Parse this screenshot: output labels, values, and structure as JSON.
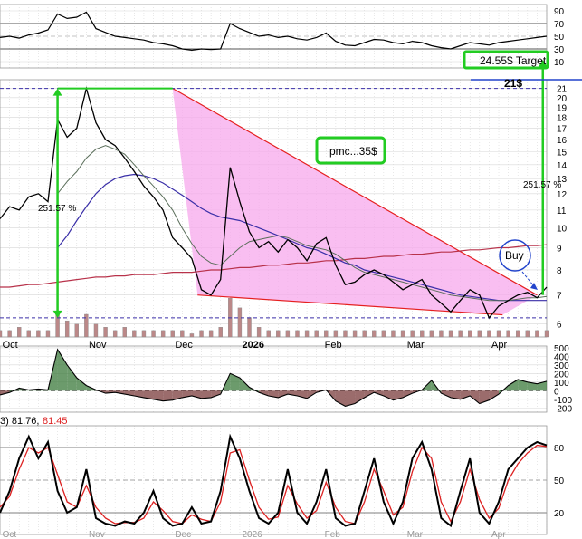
{
  "colors": {
    "background": "#ffffff",
    "grid": "#d8d8d8",
    "price": "#000000",
    "ma_short": "#5a6e5a",
    "ma_long": "#3a2fa8",
    "ma_red": "#b8324a",
    "wedge_fill": "#f7a8ec",
    "wedge_line": "#e52020",
    "annotation_green": "#22cc22",
    "annotation_blue": "#2244cc",
    "volume": "#bb8888",
    "stoch_k": "#000000",
    "stoch_d": "#dd2222",
    "hist_pos": "#3b7a3b",
    "hist_neg": "#7a3b3b"
  },
  "rsi_panel": {
    "tick_labels": [
      "90",
      "70",
      "50",
      "30",
      "10"
    ],
    "tick_values": [
      90,
      70,
      50,
      30,
      10
    ],
    "range": [
      0,
      100
    ]
  },
  "price_panel": {
    "tick_labels": [
      "21",
      "20",
      "19",
      "18",
      "17",
      "16",
      "15",
      "14",
      "13",
      "12",
      "11",
      "10",
      "9",
      "8",
      "7",
      "6"
    ],
    "tick_values": [
      21,
      20,
      19,
      18,
      17,
      16,
      15,
      14,
      13,
      12,
      11,
      10,
      9,
      8,
      7,
      6
    ],
    "x_labels": [
      "Oct",
      "Nov",
      "Dec",
      "2026",
      "Feb",
      "Mar",
      "Apr"
    ],
    "x_label_positions": [
      0.5,
      5.0,
      9.5,
      13.0,
      17.3,
      21.6,
      26.0
    ]
  },
  "macd_panel": {
    "tick_labels": [
      "500",
      "400",
      "300",
      "200",
      "100",
      "0",
      "-100",
      "-200"
    ],
    "tick_values": [
      500,
      400,
      300,
      200,
      100,
      0,
      -100,
      -200
    ]
  },
  "stoch_panel": {
    "header_prefix": "3) 81.76,",
    "header_value": "81.45",
    "tick_labels": [
      "80",
      "50",
      "20"
    ],
    "tick_values": [
      80,
      50,
      20
    ],
    "x_labels": [
      "Oct",
      "Nov",
      "Dec",
      "2026",
      "Feb",
      "Mar",
      "Apr"
    ]
  },
  "annotations": {
    "target_label": "24.55$ Target",
    "target_level_label": "21$",
    "pmc_label": "pmc...35$",
    "pct_left": "251.57 %",
    "pct_right": "251.57 %",
    "buy_label": "Buy"
  },
  "chart_data": [
    {
      "type": "line",
      "panel": "rsi",
      "x": [
        0,
        0.5,
        1,
        1.5,
        2,
        2.5,
        3,
        3.5,
        4,
        4.5,
        5,
        5.5,
        6,
        6.5,
        7,
        7.5,
        8,
        8.5,
        9,
        9.5,
        10,
        10.5,
        11,
        11.5,
        12,
        12.5,
        13,
        13.5,
        14,
        14.5,
        15,
        15.5,
        16,
        16.5,
        17,
        17.5,
        18,
        18.5,
        19,
        19.5,
        20,
        20.5,
        21,
        21.5,
        22,
        22.5,
        23,
        23.5,
        24,
        24.5,
        25,
        25.5,
        26,
        26.5,
        27,
        27.5,
        28,
        28.5
      ],
      "series": [
        {
          "values": [
            48,
            50,
            47,
            52,
            55,
            60,
            85,
            78,
            80,
            88,
            62,
            56,
            50,
            48,
            46,
            44,
            40,
            38,
            35,
            30,
            28,
            30,
            29,
            30,
            70,
            62,
            56,
            50,
            52,
            48,
            50,
            46,
            44,
            48,
            55,
            42,
            36,
            35,
            40,
            45,
            44,
            40,
            38,
            42,
            40,
            35,
            32,
            30,
            35,
            40,
            38,
            36,
            40,
            42,
            44,
            46,
            48,
            50
          ]
        }
      ],
      "ylim": [
        0,
        100
      ]
    },
    {
      "type": "line",
      "panel": "price",
      "x": [
        0,
        0.5,
        1,
        1.5,
        2,
        2.5,
        3,
        3.5,
        4,
        4.5,
        5,
        5.5,
        6,
        6.5,
        7,
        7.5,
        8,
        8.5,
        9,
        9.5,
        10,
        10.5,
        11,
        11.5,
        12,
        12.5,
        13,
        13.5,
        14,
        14.5,
        15,
        15.5,
        16,
        16.5,
        17,
        17.5,
        18,
        18.5,
        19,
        19.5,
        20,
        20.5,
        21,
        21.5,
        22,
        22.5,
        23,
        23.5,
        24,
        24.5,
        25,
        25.5,
        26,
        26.5,
        27,
        27.5,
        28,
        28.5
      ],
      "series": [
        {
          "name": "Price",
          "values": [
            10.5,
            11.2,
            11.0,
            11.8,
            12.0,
            11.5,
            17.8,
            16.2,
            17.0,
            21.0,
            17.5,
            16.0,
            15.5,
            14.5,
            13.5,
            12.5,
            11.8,
            11.0,
            9.5,
            9.0,
            8.5,
            7.2,
            7.0,
            7.6,
            13.8,
            11.5,
            9.8,
            9.0,
            9.3,
            8.8,
            9.4,
            9.0,
            8.4,
            9.2,
            9.5,
            8.2,
            7.4,
            7.5,
            7.8,
            8.0,
            7.8,
            7.5,
            7.2,
            7.4,
            7.6,
            7.0,
            6.7,
            6.4,
            6.8,
            7.2,
            7.0,
            6.2,
            6.6,
            6.8,
            7.0,
            7.1,
            6.9,
            7.3
          ]
        },
        {
          "name": "MA short",
          "values": [
            null,
            null,
            null,
            null,
            null,
            null,
            12.0,
            12.8,
            13.5,
            14.5,
            15.2,
            15.5,
            15.2,
            14.8,
            14.0,
            13.2,
            12.5,
            11.8,
            11.0,
            10.0,
            9.2,
            8.6,
            8.3,
            8.2,
            8.6,
            9.0,
            9.3,
            9.4,
            9.5,
            9.6,
            9.5,
            9.3,
            9.1,
            9.0,
            8.9,
            8.7,
            8.4,
            8.1,
            7.9,
            7.8,
            7.7,
            7.6,
            7.5,
            7.4,
            7.3,
            7.2,
            7.1,
            7.0,
            6.95,
            6.9,
            6.85,
            6.8,
            6.8,
            6.8,
            6.85,
            6.9,
            6.9,
            6.95
          ]
        },
        {
          "name": "MA long",
          "values": [
            null,
            null,
            null,
            null,
            null,
            null,
            9.0,
            9.6,
            10.4,
            11.2,
            12.0,
            12.6,
            13.0,
            13.2,
            13.3,
            13.2,
            13.0,
            12.7,
            12.3,
            11.9,
            11.5,
            11.1,
            10.8,
            10.6,
            10.5,
            10.4,
            10.2,
            10.0,
            9.8,
            9.6,
            9.4,
            9.2,
            9.0,
            8.9,
            8.7,
            8.5,
            8.3,
            8.2,
            8.0,
            7.9,
            7.8,
            7.7,
            7.6,
            7.5,
            7.4,
            7.3,
            7.2,
            7.1,
            7.0,
            6.95,
            6.9,
            6.85,
            6.8,
            6.8,
            6.8,
            6.8,
            6.8,
            6.8
          ]
        },
        {
          "name": "MA red",
          "values": [
            7.3,
            7.3,
            7.35,
            7.4,
            7.4,
            7.45,
            7.5,
            7.55,
            7.6,
            7.65,
            7.7,
            7.7,
            7.75,
            7.75,
            7.8,
            7.8,
            7.8,
            7.85,
            7.9,
            7.9,
            7.9,
            7.95,
            8.0,
            8.0,
            8.05,
            8.1,
            8.1,
            8.15,
            8.2,
            8.2,
            8.25,
            8.3,
            8.3,
            8.35,
            8.4,
            8.4,
            8.45,
            8.5,
            8.5,
            8.55,
            8.6,
            8.6,
            8.65,
            8.7,
            8.7,
            8.75,
            8.8,
            8.8,
            8.85,
            8.9,
            8.9,
            8.95,
            9.0,
            9.0,
            9.05,
            9.1,
            9.1,
            9.15
          ]
        }
      ],
      "volume": [
        2,
        2,
        3,
        2,
        2,
        2,
        8,
        5,
        4,
        7,
        4,
        3,
        2,
        3,
        2,
        2,
        2,
        2,
        2,
        2,
        1,
        2,
        2,
        3,
        12,
        9,
        6,
        3,
        2,
        2,
        2,
        2,
        2,
        2,
        2,
        2,
        2,
        2,
        2,
        2,
        2,
        2,
        2,
        2,
        2,
        2,
        2,
        2,
        2,
        2,
        2,
        2,
        2,
        2,
        2,
        2,
        2,
        2
      ],
      "wedge": {
        "upper": [
          [
            9,
            21
          ],
          [
            28,
            7
          ]
        ],
        "lower": [
          [
            10.3,
            7.0
          ],
          [
            26.2,
            6.3
          ]
        ]
      },
      "levels": [
        21,
        6.2
      ],
      "ylim": [
        5.6,
        22
      ],
      "scale": "log"
    },
    {
      "type": "area",
      "panel": "macd",
      "x": [
        0,
        0.5,
        1,
        1.5,
        2,
        2.5,
        3,
        3.5,
        4,
        4.5,
        5,
        5.5,
        6,
        6.5,
        7,
        7.5,
        8,
        8.5,
        9,
        9.5,
        10,
        10.5,
        11,
        11.5,
        12,
        12.5,
        13,
        13.5,
        14,
        14.5,
        15,
        15.5,
        16,
        16.5,
        17,
        17.5,
        18,
        18.5,
        19,
        19.5,
        20,
        20.5,
        21,
        21.5,
        22,
        22.5,
        23,
        23.5,
        24,
        24.5,
        25,
        25.5,
        26,
        26.5,
        27,
        27.5,
        28,
        28.5
      ],
      "series": [
        {
          "values": [
            -50,
            -20,
            30,
            10,
            20,
            10,
            480,
            300,
            150,
            60,
            10,
            -30,
            -20,
            -40,
            -60,
            -80,
            -100,
            -120,
            -110,
            -80,
            -60,
            -90,
            -80,
            -40,
            200,
            150,
            40,
            -20,
            -60,
            -80,
            -40,
            -60,
            -90,
            -20,
            10,
            -120,
            -180,
            -150,
            -80,
            -20,
            -60,
            -110,
            -80,
            -30,
            10,
            120,
            -30,
            -80,
            -100,
            -60,
            -150,
            -110,
            -40,
            60,
            130,
            100,
            80,
            110
          ]
        }
      ],
      "ylim": [
        -250,
        520
      ]
    },
    {
      "type": "line",
      "panel": "stochastic",
      "x": [
        0,
        0.5,
        1,
        1.5,
        2,
        2.5,
        3,
        3.5,
        4,
        4.5,
        5,
        5.5,
        6,
        6.5,
        7,
        7.5,
        8,
        8.5,
        9,
        9.5,
        10,
        10.5,
        11,
        11.5,
        12,
        12.5,
        13,
        13.5,
        14,
        14.5,
        15,
        15.5,
        16,
        16.5,
        17,
        17.5,
        18,
        18.5,
        19,
        19.5,
        20,
        20.5,
        21,
        21.5,
        22,
        22.5,
        23,
        23.5,
        24,
        24.5,
        25,
        25.5,
        26,
        26.5,
        27,
        27.5,
        28,
        28.5
      ],
      "series": [
        {
          "name": "K",
          "values": [
            20,
            40,
            70,
            90,
            70,
            85,
            40,
            20,
            25,
            60,
            15,
            10,
            8,
            12,
            10,
            20,
            40,
            15,
            8,
            10,
            25,
            10,
            12,
            40,
            90,
            70,
            40,
            15,
            10,
            20,
            60,
            20,
            10,
            30,
            60,
            15,
            8,
            10,
            40,
            70,
            30,
            10,
            30,
            70,
            85,
            60,
            15,
            8,
            40,
            70,
            20,
            10,
            30,
            60,
            70,
            80,
            85,
            82
          ]
        },
        {
          "name": "D",
          "values": [
            25,
            35,
            60,
            80,
            75,
            80,
            55,
            30,
            25,
            45,
            25,
            15,
            10,
            11,
            11,
            15,
            30,
            22,
            12,
            10,
            18,
            14,
            12,
            30,
            75,
            78,
            50,
            25,
            14,
            16,
            45,
            28,
            15,
            22,
            48,
            25,
            12,
            10,
            30,
            60,
            40,
            18,
            25,
            58,
            80,
            70,
            30,
            12,
            30,
            60,
            32,
            15,
            24,
            50,
            65,
            75,
            82,
            81
          ]
        }
      ],
      "ylim": [
        0,
        100
      ]
    }
  ]
}
